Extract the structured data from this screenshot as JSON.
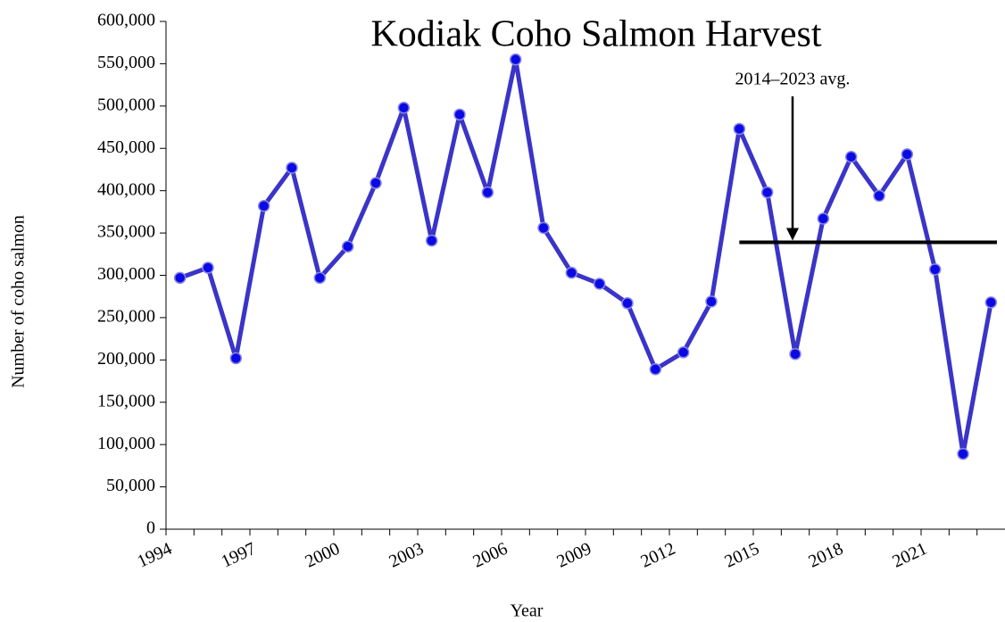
{
  "chart_data": {
    "type": "line",
    "title": "Kodiak Coho Salmon Harvest",
    "x_label": "Year",
    "y_label": "Number of coho salmon",
    "categories": [
      "1994",
      null,
      null,
      "1997",
      null,
      null,
      "2000",
      null,
      null,
      "2003",
      null,
      null,
      "2006",
      null,
      null,
      "2009",
      null,
      null,
      "2012",
      null,
      null,
      "2015",
      null,
      null,
      "2018",
      null,
      null,
      "2021",
      null,
      null
    ],
    "values": [
      297000,
      309000,
      202000,
      382000,
      427000,
      297000,
      334000,
      409000,
      498000,
      341000,
      490000,
      398000,
      555000,
      356000,
      303000,
      290000,
      267000,
      189000,
      209000,
      269000,
      473000,
      398000,
      207000,
      367000,
      440000,
      394000,
      443000,
      307000,
      89000,
      268000
    ],
    "color": "#3a34c8",
    "marker_color": "#0a0ae6",
    "ylim": [
      0,
      600000
    ],
    "yticks": [
      0,
      {
        "value": 50000,
        "label": "50,000"
      },
      {
        "value": 100000,
        "label": "100,000"
      },
      {
        "value": 150000,
        "label": "150,000"
      },
      {
        "value": 200000,
        "label": "200,000"
      },
      {
        "value": 250000,
        "label": "250,000"
      },
      {
        "value": 300000,
        "label": "300,000"
      },
      {
        "value": 350000,
        "label": "350,000"
      },
      {
        "value": 400000,
        "label": "400,000"
      },
      {
        "value": 450000,
        "label": "450,000"
      },
      {
        "value": 500000,
        "label": "500,000"
      },
      {
        "value": 550000,
        "label": "550,000"
      },
      {
        "value": 600000,
        "label": "600,000"
      }
    ],
    "average": {
      "label": "2014–2023 avg.",
      "value": 339000
    }
  }
}
